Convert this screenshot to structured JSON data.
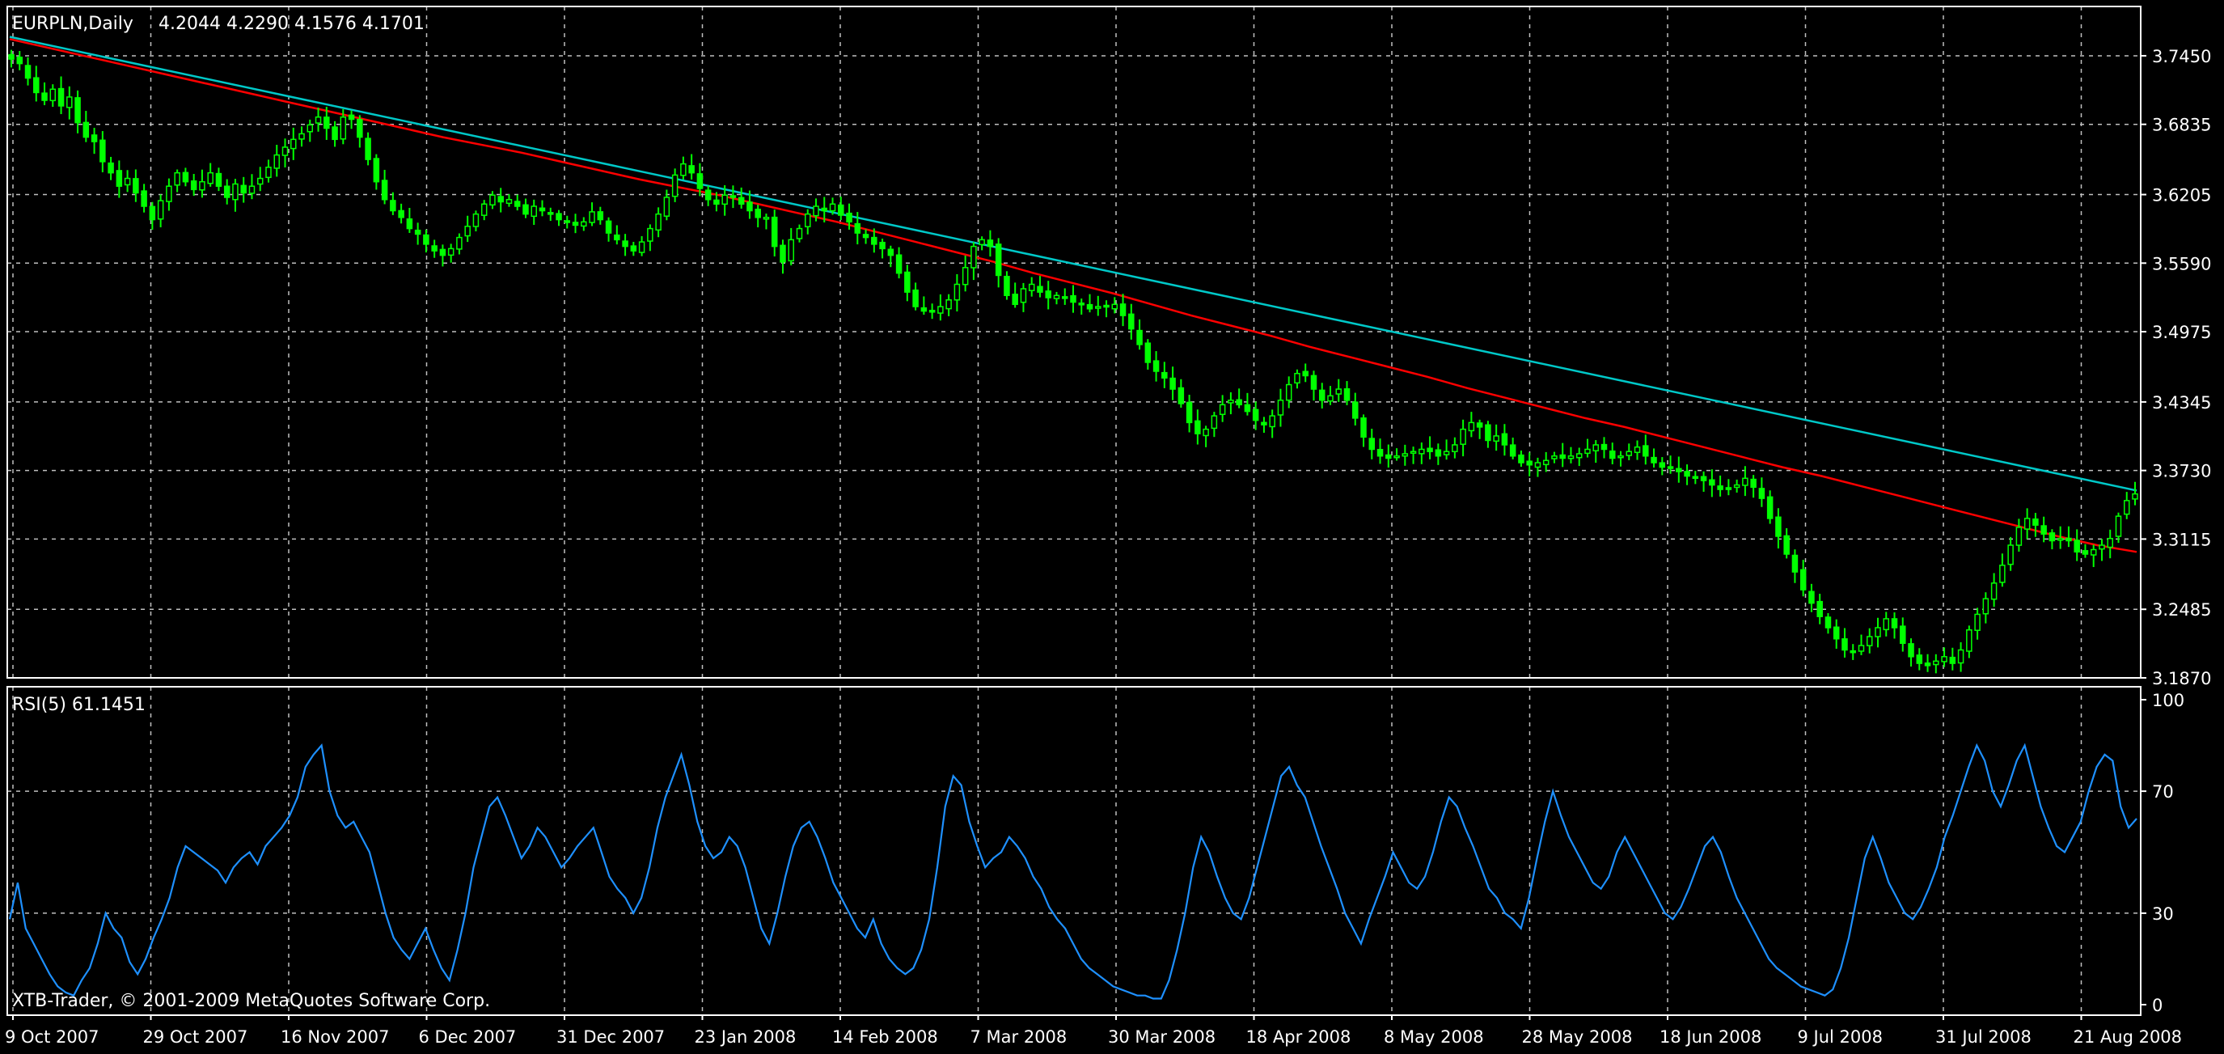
{
  "colors": {
    "background": "#000000",
    "frame": "#ffffff",
    "grid": "#c0c0c0",
    "candle": "#00ff00",
    "moving_average": "#ff0000",
    "trendline": "#00c8c8",
    "rsi_line": "#1e90ff"
  },
  "chart_data": [
    {
      "type": "candlestick",
      "title": "EURPLN,Daily",
      "ohlc_header": "4.2044 4.2290 4.1576 4.1701",
      "y_axis_position": "right",
      "ylim": [
        3.187,
        3.766
      ],
      "y_ticks": [
        "3.7450",
        "3.6835",
        "3.6205",
        "3.5590",
        "3.4975",
        "3.4345",
        "3.3730",
        "3.3115",
        "3.2485",
        "3.1870"
      ],
      "x_tick_labels": [
        "9 Oct 2007",
        "29 Oct 2007",
        "16 Nov 2007",
        "6 Dec 2007",
        "31 Dec 2007",
        "23 Jan 2008",
        "14 Feb 2008",
        "7 Mar 2008",
        "30 Mar 2008",
        "18 Apr 2008",
        "8 May 2008",
        "28 May 2008",
        "18 Jun 2008",
        "9 Jul 2008",
        "31 Jul 2008",
        "21 Aug 2008"
      ],
      "close_series": [
        3.742,
        3.738,
        3.725,
        3.712,
        3.705,
        3.715,
        3.7,
        3.708,
        3.685,
        3.672,
        3.668,
        3.65,
        3.64,
        3.628,
        3.635,
        3.622,
        3.61,
        3.598,
        3.615,
        3.628,
        3.64,
        3.632,
        3.625,
        3.632,
        3.64,
        3.628,
        3.618,
        3.63,
        3.622,
        3.628,
        3.635,
        3.645,
        3.656,
        3.663,
        3.67,
        3.675,
        3.683,
        3.69,
        3.68,
        3.67,
        3.69,
        3.688,
        3.672,
        3.652,
        3.632,
        3.616,
        3.606,
        3.6,
        3.59,
        3.585,
        3.576,
        3.57,
        3.566,
        3.572,
        3.582,
        3.592,
        3.603,
        3.612,
        3.62,
        3.614,
        3.616,
        3.61,
        3.603,
        3.61,
        3.606,
        3.603,
        3.598,
        3.596,
        3.593,
        3.596,
        3.605,
        3.598,
        3.586,
        3.58,
        3.574,
        3.57,
        3.578,
        3.59,
        3.603,
        3.618,
        3.638,
        3.648,
        3.64,
        3.626,
        3.616,
        3.612,
        3.62,
        3.618,
        3.612,
        3.606,
        3.6,
        3.6,
        3.574,
        3.56,
        3.58,
        3.59,
        3.603,
        3.61,
        3.606,
        3.612,
        3.602,
        3.596,
        3.586,
        3.582,
        3.576,
        3.572,
        3.566,
        3.55,
        3.533,
        3.52,
        3.516,
        3.516,
        3.52,
        3.526,
        3.54,
        3.555,
        3.574,
        3.58,
        3.574,
        3.548,
        3.53,
        3.522,
        3.536,
        3.54,
        3.533,
        3.528,
        3.53,
        3.528,
        3.524,
        3.522,
        3.518,
        3.52,
        3.52,
        3.522,
        3.512,
        3.5,
        3.486,
        3.47,
        3.462,
        3.456,
        3.446,
        3.433,
        3.416,
        3.406,
        3.41,
        3.422,
        3.432,
        3.436,
        3.432,
        3.426,
        3.418,
        3.414,
        3.422,
        3.436,
        3.45,
        3.46,
        3.458,
        3.446,
        3.436,
        3.44,
        3.446,
        3.436,
        3.42,
        3.403,
        3.392,
        3.386,
        3.384,
        3.386,
        3.388,
        3.39,
        3.392,
        3.39,
        3.386,
        3.39,
        3.396,
        3.41,
        3.416,
        3.412,
        3.4,
        3.404,
        3.396,
        3.386,
        3.38,
        3.378,
        3.38,
        3.382,
        3.386,
        3.384,
        3.386,
        3.388,
        3.392,
        3.396,
        3.392,
        3.384,
        3.386,
        3.39,
        3.394,
        3.386,
        3.38,
        3.376,
        3.376,
        3.372,
        3.368,
        3.366,
        3.364,
        3.36,
        3.356,
        3.356,
        3.36,
        3.366,
        3.358,
        3.348,
        3.33,
        3.314,
        3.298,
        3.282,
        3.266,
        3.254,
        3.242,
        3.232,
        3.222,
        3.212,
        3.21,
        3.216,
        3.224,
        3.232,
        3.24,
        3.232,
        3.218,
        3.206,
        3.2,
        3.198,
        3.202,
        3.206,
        3.2,
        3.212,
        3.23,
        3.244,
        3.258,
        3.272,
        3.288,
        3.306,
        3.322,
        3.33,
        3.324,
        3.316,
        3.31,
        3.312,
        3.31,
        3.3,
        3.298,
        3.302,
        3.306,
        3.312,
        3.332,
        3.346,
        3.352
      ],
      "moving_average_series": [
        3.76,
        3.752,
        3.744,
        3.736,
        3.728,
        3.72,
        3.712,
        3.704,
        3.696,
        3.688,
        3.68,
        3.672,
        3.665,
        3.658,
        3.65,
        3.642,
        3.634,
        3.627,
        3.62,
        3.612,
        3.604,
        3.596,
        3.587,
        3.578,
        3.569,
        3.56,
        3.55,
        3.541,
        3.532,
        3.522,
        3.512,
        3.503,
        3.494,
        3.484,
        3.475,
        3.466,
        3.457,
        3.447,
        3.438,
        3.429,
        3.42,
        3.412,
        3.403,
        3.394,
        3.385,
        3.376,
        3.368,
        3.359,
        3.35,
        3.341,
        3.332,
        3.323,
        3.314,
        3.306,
        3.3
      ],
      "trendline": [
        [
          0,
          3.762
        ],
        [
          1,
          3.355
        ]
      ],
      "legend": null
    },
    {
      "type": "line",
      "title": "RSI(5) 61.1451",
      "y_axis_position": "right",
      "ylim": [
        0,
        100
      ],
      "y_ticks": [
        "100",
        "70",
        "30",
        "0"
      ],
      "levels": [
        70,
        30
      ],
      "values": [
        28,
        40,
        25,
        20,
        15,
        10,
        6,
        4,
        3,
        8,
        12,
        20,
        30,
        25,
        22,
        14,
        10,
        15,
        22,
        28,
        35,
        45,
        52,
        50,
        48,
        46,
        44,
        40,
        45,
        48,
        50,
        46,
        52,
        55,
        58,
        62,
        68,
        78,
        82,
        85,
        70,
        62,
        58,
        60,
        55,
        50,
        40,
        30,
        22,
        18,
        15,
        20,
        25,
        18,
        12,
        8,
        18,
        30,
        45,
        55,
        65,
        68,
        62,
        55,
        48,
        52,
        58,
        55,
        50,
        45,
        48,
        52,
        55,
        58,
        50,
        42,
        38,
        35,
        30,
        35,
        45,
        58,
        68,
        75,
        82,
        72,
        60,
        52,
        48,
        50,
        55,
        52,
        45,
        35,
        25,
        20,
        30,
        42,
        52,
        58,
        60,
        55,
        48,
        40,
        35,
        30,
        25,
        22,
        28,
        20,
        15,
        12,
        10,
        12,
        18,
        28,
        45,
        65,
        75,
        72,
        60,
        52,
        45,
        48,
        50,
        55,
        52,
        48,
        42,
        38,
        32,
        28,
        25,
        20,
        15,
        12,
        10,
        8,
        6,
        5,
        4,
        3,
        3,
        2,
        2,
        8,
        18,
        30,
        45,
        55,
        50,
        42,
        35,
        30,
        28,
        35,
        45,
        55,
        65,
        75,
        78,
        72,
        68,
        60,
        52,
        45,
        38,
        30,
        25,
        20,
        28,
        35,
        42,
        50,
        45,
        40,
        38,
        42,
        50,
        60,
        68,
        65,
        58,
        52,
        45,
        38,
        35,
        30,
        28,
        25,
        35,
        48,
        60,
        70,
        62,
        55,
        50,
        45,
        40,
        38,
        42,
        50,
        55,
        50,
        45,
        40,
        35,
        30,
        28,
        32,
        38,
        45,
        52,
        55,
        50,
        42,
        35,
        30,
        25,
        20,
        15,
        12,
        10,
        8,
        6,
        5,
        4,
        3,
        5,
        12,
        22,
        35,
        48,
        55,
        48,
        40,
        35,
        30,
        28,
        32,
        38,
        45,
        55,
        62,
        70,
        78,
        85,
        80,
        70,
        65,
        72,
        80,
        85,
        75,
        65,
        58,
        52,
        50,
        55,
        60,
        70,
        78,
        82,
        80,
        65,
        58,
        61
      ]
    }
  ],
  "footer": {
    "copyright": "XTB-Trader, © 2001-2009 MetaQuotes Software Corp."
  }
}
